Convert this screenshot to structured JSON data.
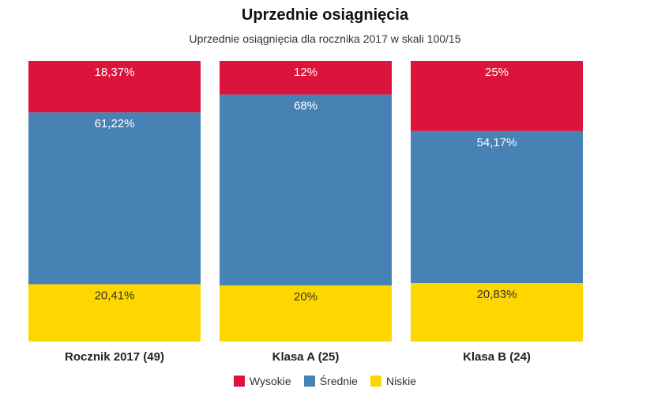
{
  "colors": {
    "high": "#dc143c",
    "mid": "#4682b4",
    "low": "#ffd700"
  },
  "chart_data": {
    "type": "bar",
    "stacked": true,
    "normalized": true,
    "title": "Uprzednie osiągnięcia",
    "subtitle": "Uprzednie osiągnięcia dla rocznika 2017 w skali 100/15",
    "categories": [
      "Rocznik 2017 (49)",
      "Klasa A (25)",
      "Klasa B (24)"
    ],
    "series": [
      {
        "name": "Niskie",
        "color": "#ffd700",
        "values": [
          20.41,
          20,
          20.83
        ],
        "labels": [
          "20,41%",
          "20%",
          "20,83%"
        ]
      },
      {
        "name": "Średnie",
        "color": "#4682b4",
        "values": [
          61.22,
          68,
          54.17
        ],
        "labels": [
          "61,22%",
          "68%",
          "54,17%"
        ]
      },
      {
        "name": "Wysokie",
        "color": "#dc143c",
        "values": [
          18.37,
          12,
          25
        ],
        "labels": [
          "18,37%",
          "12%",
          "25%"
        ]
      }
    ],
    "legend": [
      "Wysokie",
      "Średnie",
      "Niskie"
    ],
    "legend_position": "bottom",
    "ylim": [
      0,
      100
    ],
    "grid": false
  }
}
